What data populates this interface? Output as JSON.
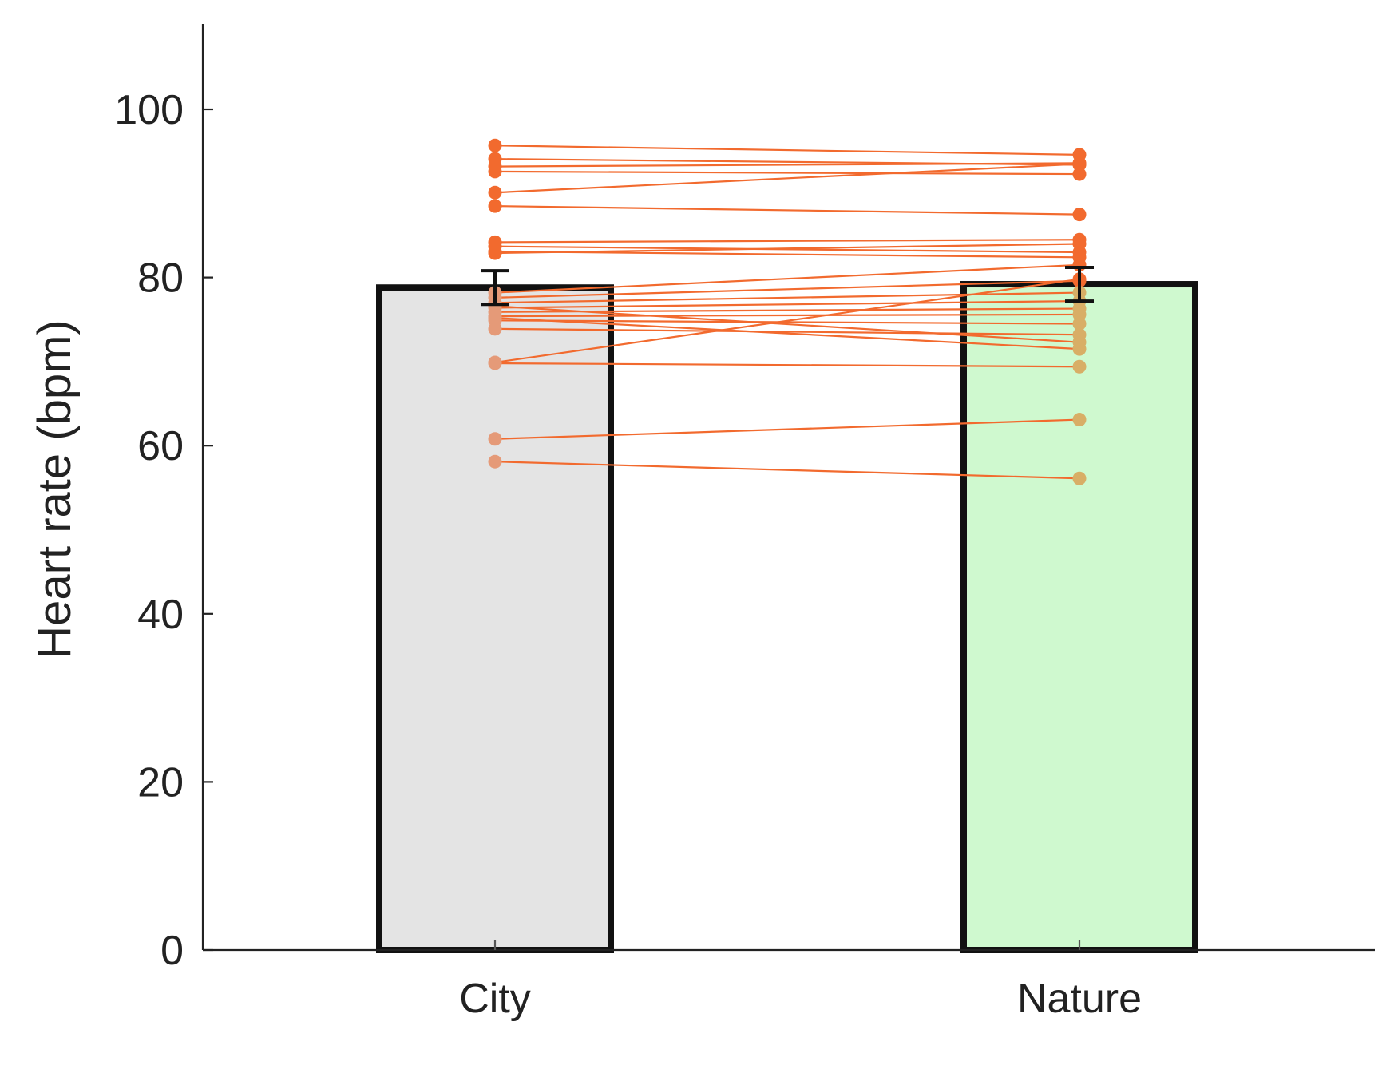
{
  "chart_data": {
    "type": "bar",
    "title": "",
    "xlabel": "",
    "ylabel": "Heart rate (bpm)",
    "ylim": [
      0,
      110
    ],
    "yticks": [
      0,
      20,
      40,
      60,
      80,
      100
    ],
    "ytick_labels": [
      "0",
      "20",
      "40",
      "60",
      "80",
      "100"
    ],
    "categories": [
      "City",
      "Nature"
    ],
    "values": [
      78.8,
      79.2
    ],
    "errors": [
      2.0,
      2.0
    ],
    "bar_colors": [
      "#e4e4e4",
      "#cff9cf"
    ],
    "bar_edge_color": "#111111",
    "paired_line_color": "#f26a2e",
    "point_color_above_bar": "#f26a2e",
    "point_colors_inside_bar": [
      "#e59a78",
      "#d8ae66"
    ],
    "paired_points": [
      [
        95.7,
        94.6
      ],
      [
        94.1,
        93.4
      ],
      [
        93.2,
        93.6
      ],
      [
        92.6,
        92.3
      ],
      [
        90.1,
        93.5
      ],
      [
        88.5,
        87.5
      ],
      [
        84.2,
        84.5
      ],
      [
        83.7,
        83.0
      ],
      [
        83.1,
        82.4
      ],
      [
        82.9,
        84.0
      ],
      [
        78.2,
        81.5
      ],
      [
        77.6,
        79.6
      ],
      [
        77.0,
        78.2
      ],
      [
        76.4,
        77.2
      ],
      [
        75.9,
        76.3
      ],
      [
        75.4,
        75.6
      ],
      [
        74.9,
        74.5
      ],
      [
        73.9,
        73.2
      ],
      [
        76.6,
        72.3
      ],
      [
        75.2,
        71.5
      ],
      [
        69.8,
        69.4
      ],
      [
        69.9,
        79.8
      ],
      [
        60.8,
        63.1
      ],
      [
        58.1,
        56.1
      ]
    ]
  }
}
